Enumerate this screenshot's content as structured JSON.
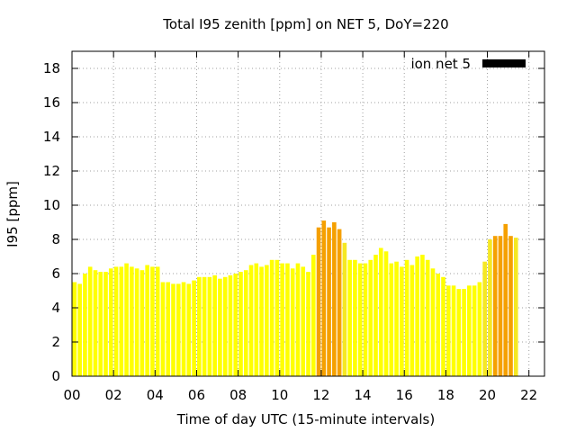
{
  "chart_data": {
    "type": "bar",
    "title": "Total I95 zenith [ppm] on NET 5, DoY=220",
    "xlabel": "Time of day UTC (15-minute intervals)",
    "ylabel": "I95 [ppm]",
    "xlim": [
      0,
      22.75
    ],
    "ylim": [
      0,
      19
    ],
    "x_ticks": [
      "00",
      "02",
      "04",
      "06",
      "08",
      "10",
      "12",
      "14",
      "16",
      "18",
      "20",
      "22"
    ],
    "y_ticks": [
      "0",
      "2",
      "4",
      "6",
      "8",
      "10",
      "12",
      "14",
      "16",
      "18"
    ],
    "grid": true,
    "legend_position": "top-right",
    "series": [
      {
        "name": "ion net 5",
        "legend_color": "#000000",
        "x_start_hour": 0,
        "interval_hours": 0.25,
        "values": [
          5.5,
          5.4,
          6.0,
          6.4,
          6.2,
          6.1,
          6.1,
          6.3,
          6.4,
          6.4,
          6.6,
          6.4,
          6.3,
          6.2,
          6.5,
          6.4,
          6.4,
          5.5,
          5.5,
          5.4,
          5.4,
          5.5,
          5.4,
          5.6,
          5.8,
          5.8,
          5.8,
          5.9,
          5.7,
          5.8,
          5.9,
          6.0,
          6.1,
          6.2,
          6.5,
          6.6,
          6.4,
          6.5,
          6.8,
          6.8,
          6.6,
          6.6,
          6.3,
          6.6,
          6.4,
          6.1,
          7.1,
          8.7,
          9.1,
          8.7,
          9.0,
          8.6,
          7.8,
          6.8,
          6.8,
          6.6,
          6.6,
          6.8,
          7.1,
          7.5,
          7.3,
          6.6,
          6.7,
          6.4,
          6.8,
          6.5,
          7.0,
          7.1,
          6.8,
          6.3,
          6.0,
          5.8,
          5.3,
          5.3,
          5.1,
          5.1,
          5.3,
          5.3,
          5.5,
          6.7,
          8.0,
          8.2,
          8.2,
          8.9,
          8.2,
          8.1
        ],
        "colors": {
          "normal": "#ffff00",
          "moderate": "#f5e823",
          "elevated": "#f5a000"
        },
        "color_levels": [
          "normal",
          "normal",
          "normal",
          "normal",
          "normal",
          "normal",
          "normal",
          "normal",
          "normal",
          "normal",
          "normal",
          "normal",
          "normal",
          "normal",
          "normal",
          "normal",
          "normal",
          "normal",
          "normal",
          "normal",
          "normal",
          "normal",
          "normal",
          "normal",
          "normal",
          "normal",
          "normal",
          "normal",
          "normal",
          "normal",
          "normal",
          "normal",
          "normal",
          "normal",
          "normal",
          "normal",
          "normal",
          "normal",
          "normal",
          "normal",
          "normal",
          "normal",
          "normal",
          "normal",
          "normal",
          "normal",
          "normal",
          "elevated",
          "elevated",
          "elevated",
          "elevated",
          "elevated",
          "moderate",
          "normal",
          "normal",
          "normal",
          "normal",
          "normal",
          "normal",
          "normal",
          "normal",
          "normal",
          "normal",
          "normal",
          "normal",
          "normal",
          "normal",
          "normal",
          "normal",
          "normal",
          "normal",
          "normal",
          "normal",
          "normal",
          "normal",
          "normal",
          "normal",
          "normal",
          "normal",
          "moderate",
          "moderate",
          "elevated",
          "elevated",
          "elevated",
          "elevated",
          "moderate"
        ]
      }
    ]
  }
}
